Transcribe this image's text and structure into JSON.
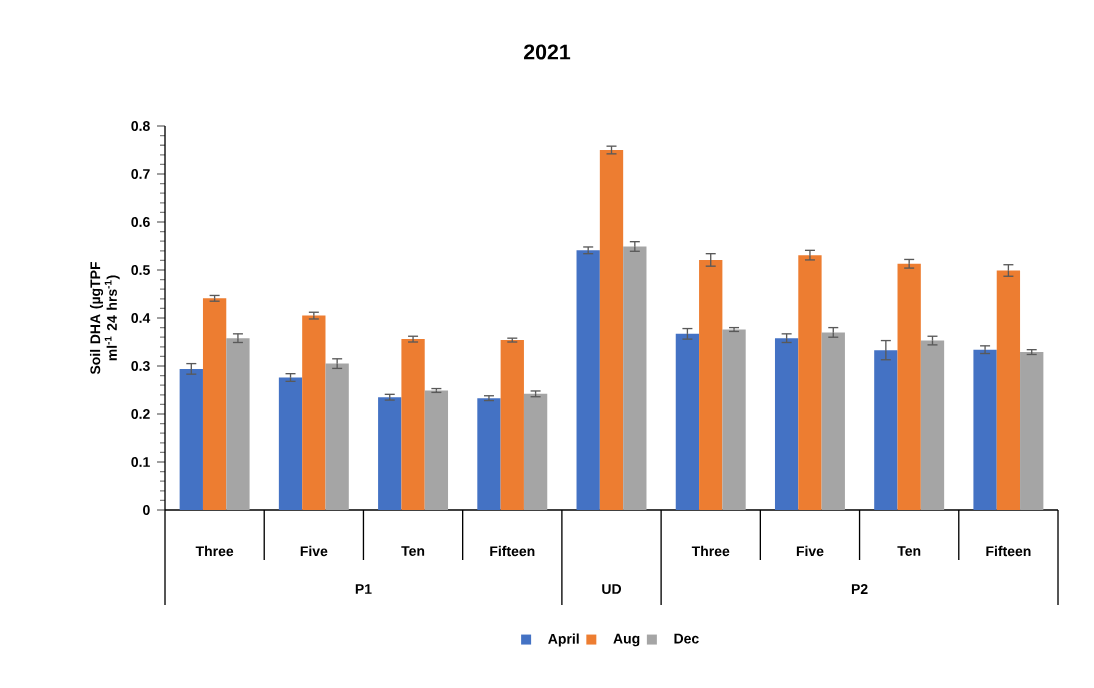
{
  "chart_data": {
    "type": "bar",
    "title": "2021",
    "ylabel": "Soil DHA (µgTPF ml$^{-1}$ 24 hrs$^{-1}$)",
    "categories": [
      "Three",
      "Five",
      "Ten",
      "Fifteen",
      null,
      "Three",
      "Five",
      "Ten",
      "Fifteen"
    ],
    "annotations": [
      "P1",
      "UD",
      "P2"
    ],
    "ylim": [
      0,
      0.8
    ],
    "yticks": [
      0,
      0.1,
      0.2,
      0.3,
      0.4,
      0.5,
      0.6,
      0.7,
      0.8
    ],
    "legend": "bottom",
    "series": [
      {
        "name": "April",
        "color": "#4472c4",
        "values": [
          0.294,
          0.276,
          0.235,
          0.233,
          0.541,
          0.367,
          0.358,
          0.333,
          0.334
        ],
        "errors": [
          0.011,
          0.008,
          0.006,
          0.005,
          0.007,
          0.011,
          0.009,
          0.02,
          0.008
        ]
      },
      {
        "name": "Aug",
        "color": "#ed7d31",
        "values": [
          0.441,
          0.405,
          0.356,
          0.354,
          0.75,
          0.521,
          0.531,
          0.513,
          0.499
        ],
        "errors": [
          0.006,
          0.007,
          0.006,
          0.004,
          0.008,
          0.013,
          0.01,
          0.009,
          0.012
        ]
      },
      {
        "name": "Dec",
        "color": "#a5a5a5",
        "values": [
          0.358,
          0.305,
          0.249,
          0.242,
          0.549,
          0.376,
          0.37,
          0.353,
          0.329
        ],
        "errors": [
          0.009,
          0.01,
          0.004,
          0.006,
          0.01,
          0.004,
          0.01,
          0.009,
          0.005
        ]
      }
    ]
  }
}
